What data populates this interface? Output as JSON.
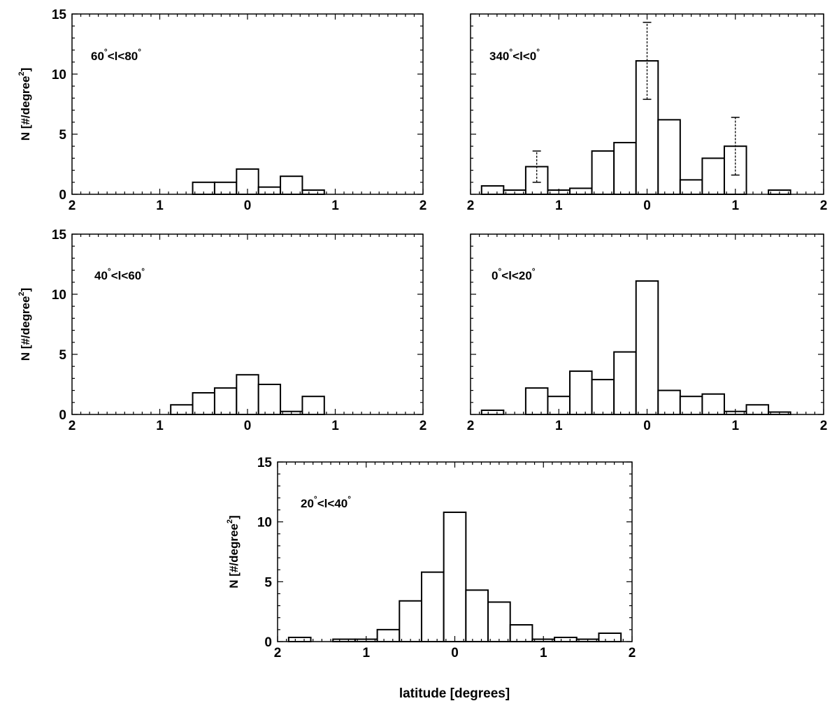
{
  "figure": {
    "common_xlabel": "latitude [degrees]"
  },
  "chart_data": [
    {
      "type": "bar",
      "panel": "60°<l<80°",
      "label_main": "60",
      "label_rest": "<l<80",
      "ylabel_main": "N [#/degree",
      "ylabel_sup": "2",
      "ylabel_end": "]",
      "xlabel": "",
      "xlim": [
        -2,
        2
      ],
      "ylim": [
        0,
        15
      ],
      "x_ticks": [
        -2,
        -1,
        0,
        1,
        2
      ],
      "x_tick_labels": [
        "2",
        "1",
        "0",
        "1",
        "2"
      ],
      "y_ticks": [
        0,
        5,
        10,
        15
      ],
      "y_tick_labels": [
        "0",
        "5",
        "10",
        "15"
      ],
      "bin_width": 0.25,
      "bins": [
        {
          "x": -0.5,
          "y": 1.0
        },
        {
          "x": -0.25,
          "y": 1.0
        },
        {
          "x": 0.0,
          "y": 2.1
        },
        {
          "x": 0.25,
          "y": 0.6
        },
        {
          "x": 0.5,
          "y": 1.5
        },
        {
          "x": 0.75,
          "y": 0.35
        }
      ],
      "error_bars": []
    },
    {
      "type": "bar",
      "panel": "340°<l<0°",
      "label_main": "340",
      "label_rest": "<l<0",
      "ylabel_main": "",
      "ylabel_sup": "",
      "ylabel_end": "",
      "xlabel": "",
      "xlim": [
        -2,
        2
      ],
      "ylim": [
        0,
        15
      ],
      "x_ticks": [
        -2,
        -1,
        0,
        1,
        2
      ],
      "x_tick_labels": [
        "2",
        "1",
        "0",
        "1",
        "2"
      ],
      "y_ticks": [
        0,
        5,
        10,
        15
      ],
      "y_tick_labels": [],
      "bin_width": 0.25,
      "bins": [
        {
          "x": -1.75,
          "y": 0.7
        },
        {
          "x": -1.5,
          "y": 0.35
        },
        {
          "x": -1.25,
          "y": 2.3
        },
        {
          "x": -1.0,
          "y": 0.35
        },
        {
          "x": -0.75,
          "y": 0.5
        },
        {
          "x": -0.5,
          "y": 3.6
        },
        {
          "x": -0.25,
          "y": 4.3
        },
        {
          "x": 0.0,
          "y": 11.1
        },
        {
          "x": 0.25,
          "y": 6.2
        },
        {
          "x": 0.5,
          "y": 1.2
        },
        {
          "x": 0.75,
          "y": 3.0
        },
        {
          "x": 1.0,
          "y": 4.0
        },
        {
          "x": 1.5,
          "y": 0.35
        }
      ],
      "error_bars": [
        {
          "x": -1.25,
          "low": 1.0,
          "high": 3.6
        },
        {
          "x": 0.0,
          "low": 7.9,
          "high": 14.3
        },
        {
          "x": 1.0,
          "low": 1.6,
          "high": 6.4
        }
      ]
    },
    {
      "type": "bar",
      "panel": "40°<l<60°",
      "label_main": "40",
      "label_rest": "<l<60",
      "ylabel_main": "N [#/degree",
      "ylabel_sup": "2",
      "ylabel_end": "]",
      "xlabel": "",
      "xlim": [
        -2,
        2
      ],
      "ylim": [
        0,
        15
      ],
      "x_ticks": [
        -2,
        -1,
        0,
        1,
        2
      ],
      "x_tick_labels": [
        "2",
        "1",
        "0",
        "1",
        "2"
      ],
      "y_ticks": [
        0,
        5,
        10,
        15
      ],
      "y_tick_labels": [
        "0",
        "5",
        "10",
        "15"
      ],
      "bin_width": 0.25,
      "bins": [
        {
          "x": -0.75,
          "y": 0.8
        },
        {
          "x": -0.5,
          "y": 1.8
        },
        {
          "x": -0.25,
          "y": 2.2
        },
        {
          "x": 0.0,
          "y": 3.3
        },
        {
          "x": 0.25,
          "y": 2.5
        },
        {
          "x": 0.5,
          "y": 0.25
        },
        {
          "x": 0.75,
          "y": 1.5
        }
      ],
      "error_bars": []
    },
    {
      "type": "bar",
      "panel": "0°<l<20°",
      "label_main": "0",
      "label_rest": "<l<20",
      "ylabel_main": "",
      "ylabel_sup": "",
      "ylabel_end": "",
      "xlabel": "",
      "xlim": [
        -2,
        2
      ],
      "ylim": [
        0,
        15
      ],
      "x_ticks": [
        -2,
        -1,
        0,
        1,
        2
      ],
      "x_tick_labels": [
        "2",
        "1",
        "0",
        "1",
        "2"
      ],
      "y_ticks": [
        0,
        5,
        10,
        15
      ],
      "y_tick_labels": [],
      "bin_width": 0.25,
      "bins": [
        {
          "x": -1.75,
          "y": 0.35
        },
        {
          "x": -1.25,
          "y": 2.2
        },
        {
          "x": -1.0,
          "y": 1.5
        },
        {
          "x": -0.75,
          "y": 3.6
        },
        {
          "x": -0.5,
          "y": 2.9
        },
        {
          "x": -0.25,
          "y": 5.2
        },
        {
          "x": 0.0,
          "y": 11.1
        },
        {
          "x": 0.25,
          "y": 2.0
        },
        {
          "x": 0.5,
          "y": 1.5
        },
        {
          "x": 0.75,
          "y": 1.7
        },
        {
          "x": 1.0,
          "y": 0.25
        },
        {
          "x": 1.25,
          "y": 0.8
        },
        {
          "x": 1.5,
          "y": 0.2
        }
      ],
      "error_bars": []
    },
    {
      "type": "bar",
      "panel": "20°<l<40°",
      "label_main": "20",
      "label_rest": "<l<40",
      "ylabel_main": "N [#/degree",
      "ylabel_sup": "2",
      "ylabel_end": "]",
      "xlabel": "",
      "xlim": [
        -2,
        2
      ],
      "ylim": [
        0,
        15
      ],
      "x_ticks": [
        -2,
        -1,
        0,
        1,
        2
      ],
      "x_tick_labels": [
        "2",
        "1",
        "0",
        "1",
        "2"
      ],
      "y_ticks": [
        0,
        5,
        10,
        15
      ],
      "y_tick_labels": [
        "0",
        "5",
        "10",
        "15"
      ],
      "bin_width": 0.25,
      "bins": [
        {
          "x": -1.75,
          "y": 0.35
        },
        {
          "x": -1.25,
          "y": 0.2
        },
        {
          "x": -1.0,
          "y": 0.2
        },
        {
          "x": -0.75,
          "y": 1.0
        },
        {
          "x": -0.5,
          "y": 3.4
        },
        {
          "x": -0.25,
          "y": 5.8
        },
        {
          "x": 0.0,
          "y": 10.8
        },
        {
          "x": 0.25,
          "y": 4.3
        },
        {
          "x": 0.5,
          "y": 3.3
        },
        {
          "x": 0.75,
          "y": 1.4
        },
        {
          "x": 1.0,
          "y": 0.2
        },
        {
          "x": 1.25,
          "y": 0.35
        },
        {
          "x": 1.5,
          "y": 0.2
        },
        {
          "x": 1.75,
          "y": 0.7
        }
      ],
      "error_bars": []
    }
  ]
}
